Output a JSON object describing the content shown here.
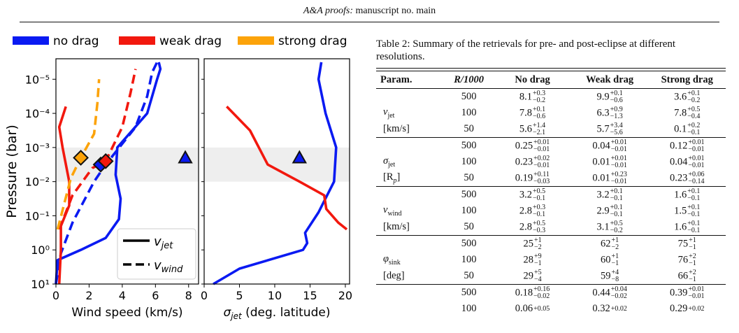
{
  "header": {
    "journal": "A&A proofs:",
    "rest": "manuscript no. main"
  },
  "legend": {
    "no_drag": "no drag",
    "weak_drag": "weak drag",
    "strong_drag": "strong drag",
    "vjet": "v",
    "vjet_sub": "jet",
    "vwind": "v",
    "vwind_sub": "wind"
  },
  "colors": {
    "no_drag": "#0a1af2",
    "weak_drag": "#f2180e",
    "strong_drag": "#fca30a",
    "band": "#eeeeee"
  },
  "chart_data": [
    {
      "type": "line",
      "xlabel": "Wind speed (km/s)",
      "ylabel": "Pressure (bar)",
      "xlim": [
        0,
        8.6
      ],
      "xticks": [
        0,
        2,
        4,
        6,
        8
      ],
      "yscale": "log-inverted",
      "ylim_log10": [
        -5.6,
        1
      ],
      "yticks": [
        "10⁻⁵",
        "10⁻⁴",
        "10⁻³",
        "10⁻²",
        "10⁻¹",
        "10⁰",
        "10¹"
      ],
      "shaded_band_log10": [
        -3,
        -2
      ],
      "series": [
        {
          "name": "no drag",
          "style": "solid",
          "points": [
            [
              0,
              1
            ],
            [
              0.1,
              0.3
            ],
            [
              1.5,
              0
            ],
            [
              3,
              -0.35
            ],
            [
              3.8,
              -0.9
            ],
            [
              3.9,
              -1.5
            ],
            [
              3.6,
              -2.2
            ],
            [
              3.7,
              -3
            ],
            [
              5.5,
              -4
            ],
            [
              6.1,
              -5
            ],
            [
              6.3,
              -5.3
            ],
            [
              6.2,
              -5.5
            ]
          ]
        },
        {
          "name": "no drag",
          "style": "dashed",
          "points": [
            [
              0,
              1
            ],
            [
              0.3,
              0.1
            ],
            [
              1,
              -0.8
            ],
            [
              2.3,
              -2
            ],
            [
              3,
              -2.5
            ],
            [
              4.8,
              -3.6
            ],
            [
              5.5,
              -4.5
            ],
            [
              5.8,
              -5.2
            ],
            [
              6.1,
              -5.5
            ]
          ]
        },
        {
          "name": "weak drag",
          "style": "solid",
          "points": [
            [
              0.2,
              1
            ],
            [
              0.3,
              0
            ],
            [
              0.3,
              -0.7
            ],
            [
              0.8,
              -1.3
            ],
            [
              0.8,
              -2
            ],
            [
              0.4,
              -3
            ],
            [
              0.2,
              -3.6
            ],
            [
              0.6,
              -4.2
            ]
          ]
        },
        {
          "name": "weak drag",
          "style": "dashed",
          "points": [
            [
              0.2,
              -0.6
            ],
            [
              1,
              -1.6
            ],
            [
              2.2,
              -2.4
            ],
            [
              3,
              -2.6
            ],
            [
              4,
              -3.6
            ],
            [
              4.5,
              -4.6
            ],
            [
              4.8,
              -5.3
            ]
          ]
        },
        {
          "name": "strong drag",
          "style": "dashed",
          "points": [
            [
              0.1,
              -0.6
            ],
            [
              0.9,
              -2.1
            ],
            [
              1.5,
              -2.7
            ],
            [
              2.3,
              -3.4
            ],
            [
              2.5,
              -4.3
            ],
            [
              2.6,
              -5
            ]
          ]
        }
      ],
      "markers": [
        {
          "series": "strong drag",
          "shape": "diamond",
          "x": 1.5,
          "y_log10": -2.7
        },
        {
          "series": "no drag",
          "shape": "diamond",
          "x": 2.7,
          "y_log10": -2.5
        },
        {
          "series": "weak drag",
          "shape": "diamond",
          "x": 3.0,
          "y_log10": -2.6
        },
        {
          "series": "no drag",
          "shape": "triangle",
          "x": 7.8,
          "y_log10": -2.7
        }
      ]
    },
    {
      "type": "line",
      "xlabel": "σjet (deg. latitude)",
      "xlim": [
        0,
        20.6
      ],
      "xticks": [
        0,
        5,
        10,
        15,
        20
      ],
      "yscale": "log-inverted",
      "ylim_log10": [
        -5.6,
        1
      ],
      "shaded_band_log10": [
        -3,
        -2
      ],
      "series": [
        {
          "name": "no drag",
          "style": "solid",
          "points": [
            [
              1.3,
              1
            ],
            [
              5,
              0.55
            ],
            [
              14,
              0
            ],
            [
              14.6,
              -0.2
            ],
            [
              14.3,
              -0.5
            ],
            [
              16.2,
              -1.1
            ],
            [
              18.4,
              -2
            ],
            [
              18.7,
              -3
            ],
            [
              17.2,
              -4
            ],
            [
              16.2,
              -5
            ],
            [
              16.6,
              -5.5
            ]
          ]
        },
        {
          "name": "weak drag",
          "style": "solid",
          "points": [
            [
              20.2,
              -0.6
            ],
            [
              19,
              -0.8
            ],
            [
              17.3,
              -1.2
            ],
            [
              17,
              -1.6
            ],
            [
              13.5,
              -2
            ],
            [
              9,
              -2.5
            ],
            [
              6.5,
              -3.5
            ],
            [
              3.2,
              -4.2
            ]
          ]
        }
      ],
      "markers": [
        {
          "series": "no drag",
          "shape": "triangle",
          "x": 13.5,
          "y_log10": -2.7
        }
      ]
    }
  ],
  "table": {
    "caption": "Table 2: Summary of the retrievals for pre- and post-eclipse at different resolutions.",
    "headers": {
      "param": "Param.",
      "res": "R/1000",
      "no_drag": "No drag",
      "weak_drag": "Weak drag",
      "strong_drag": "Strong drag"
    },
    "groups": [
      {
        "sym": "v",
        "sub": "jet",
        "unit": "[km/s]",
        "rows": [
          {
            "res": "500",
            "cells": [
              [
                "8.1",
                "+0.3",
                "−0.2"
              ],
              [
                "9.9",
                "+0.1",
                "−0.6"
              ],
              [
                "3.6",
                "+0.1",
                "−0.2"
              ]
            ]
          },
          {
            "res": "100",
            "cells": [
              [
                "7.8",
                "+0.1",
                "−0.6"
              ],
              [
                "6.3",
                "+0.9",
                "−1.3"
              ],
              [
                "7.8",
                "+0.5",
                "−0.4"
              ]
            ]
          },
          {
            "res": "50",
            "cells": [
              [
                "5.6",
                "+1.4",
                "−2.1"
              ],
              [
                "5.7",
                "+3.4",
                "−5.6"
              ],
              [
                "0.1",
                "+0.2",
                "−0.1"
              ]
            ]
          }
        ]
      },
      {
        "sym": "σ",
        "sub": "jet",
        "unit": "[R",
        "unit_sub": "p",
        "unit_end": "]",
        "rows": [
          {
            "res": "500",
            "cells": [
              [
                "0.25",
                "+0.01",
                "−0.01"
              ],
              [
                "0.04",
                "+0.01",
                "−0.01"
              ],
              [
                "0.12",
                "+0.01",
                "−0.01"
              ]
            ]
          },
          {
            "res": "100",
            "cells": [
              [
                "0.23",
                "+0.02",
                "−0.01"
              ],
              [
                "0.01",
                "+0.01",
                "−0.01"
              ],
              [
                "0.04",
                "+0.01",
                "−0.01"
              ]
            ]
          },
          {
            "res": "50",
            "cells": [
              [
                "0.19",
                "+0.11",
                "−0.03"
              ],
              [
                "0.01",
                "+0.23",
                "−0.01"
              ],
              [
                "0.23",
                "+0.06",
                "−0.14"
              ]
            ]
          }
        ]
      },
      {
        "sym": "v",
        "sub": "wind",
        "unit": "[km/s]",
        "rows": [
          {
            "res": "500",
            "cells": [
              [
                "3.2",
                "+0.5",
                "−0.1"
              ],
              [
                "3.2",
                "+0.1",
                "−0.1"
              ],
              [
                "1.6",
                "+0.1",
                "−0.1"
              ]
            ]
          },
          {
            "res": "100",
            "cells": [
              [
                "2.8",
                "+0.3",
                "−0.1"
              ],
              [
                "2.9",
                "+0.1",
                "−0.1"
              ],
              [
                "1.5",
                "+0.1",
                "−0.1"
              ]
            ]
          },
          {
            "res": "50",
            "cells": [
              [
                "2.8",
                "+0.5",
                "−0.3"
              ],
              [
                "3.1",
                "+0.5",
                "−0.2"
              ],
              [
                "1.6",
                "+0.1",
                "−0.1"
              ]
            ]
          }
        ]
      },
      {
        "sym": "φ",
        "sub": "sink",
        "unit": "[deg]",
        "rows": [
          {
            "res": "500",
            "cells": [
              [
                "25",
                "+1",
                "−2"
              ],
              [
                "62",
                "+1",
                "−2"
              ],
              [
                "75",
                "+1",
                "−1"
              ]
            ]
          },
          {
            "res": "100",
            "cells": [
              [
                "28",
                "+9",
                "−1"
              ],
              [
                "60",
                "+1",
                "−1"
              ],
              [
                "76",
                "+2",
                "−1"
              ]
            ]
          },
          {
            "res": "50",
            "cells": [
              [
                "29",
                "+5",
                "−4"
              ],
              [
                "59",
                "+4",
                "−8"
              ],
              [
                "66",
                "+2",
                "−1"
              ]
            ]
          }
        ]
      },
      {
        "sym": "",
        "sub": "",
        "unit": "",
        "rows": [
          {
            "res": "500",
            "cells": [
              [
                "0.18",
                "+0.16",
                "−0.02"
              ],
              [
                "0.44",
                "+0.04",
                "−0.02"
              ],
              [
                "0.39",
                "+0.01",
                "−0.01"
              ]
            ]
          },
          {
            "res": "100",
            "cells": [
              [
                "0.06",
                "+0.05",
                ""
              ],
              [
                "0.32",
                "+0.02",
                ""
              ],
              [
                "0.29",
                "+0.02",
                ""
              ]
            ]
          }
        ]
      }
    ]
  }
}
